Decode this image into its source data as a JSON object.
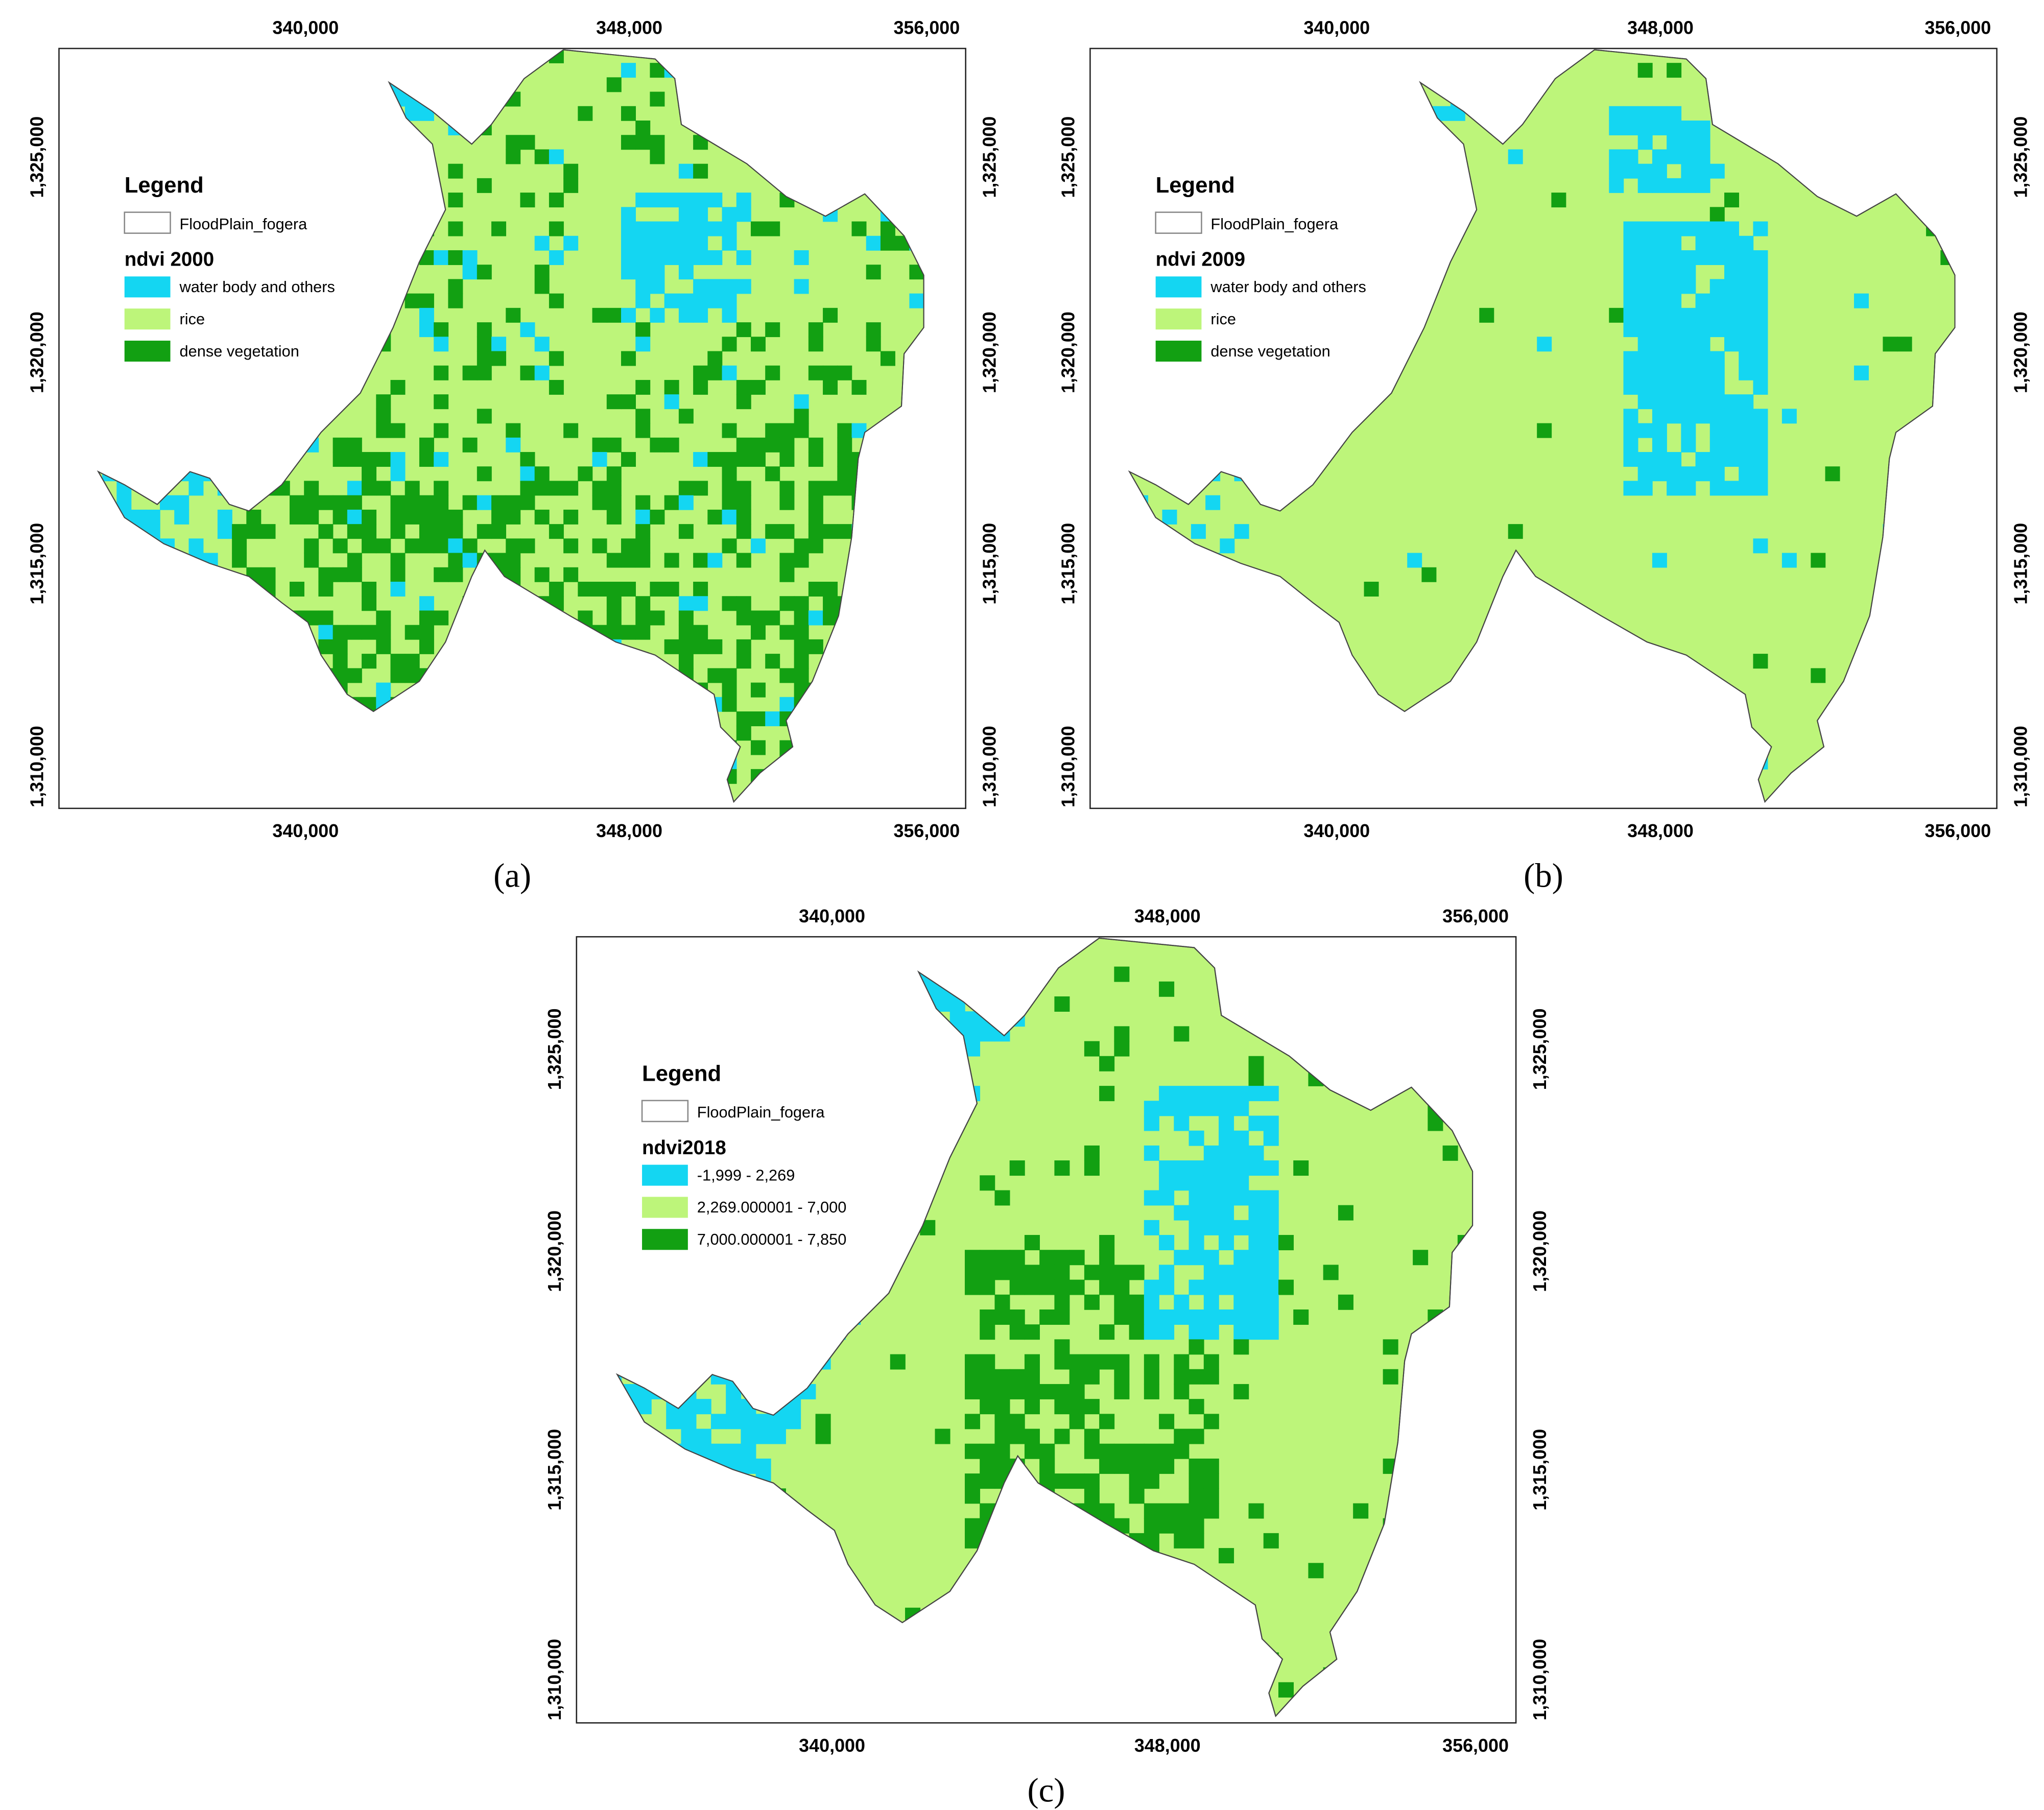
{
  "panels": [
    {
      "caption": "(a)",
      "legend": {
        "title": "Legend",
        "boundary": "FloodPlain_fogera",
        "layer": "ndvi 2000",
        "classes": [
          {
            "label": "water body and others",
            "color": "#14d6f2"
          },
          {
            "label": "rice",
            "color": "#bdf57a"
          },
          {
            "label": "dense vegetation",
            "color": "#12a012"
          }
        ]
      },
      "x_labels": [
        "340,000",
        "348,000",
        "356,000"
      ],
      "y_labels": [
        "1,325,000",
        "1,320,000",
        "1,315,000",
        "1,310,000"
      ]
    },
    {
      "caption": "(b)",
      "legend": {
        "title": "Legend",
        "boundary": "FloodPlain_fogera",
        "layer": "ndvi 2009",
        "classes": [
          {
            "label": "water body and others",
            "color": "#14d6f2"
          },
          {
            "label": "rice",
            "color": "#bdf57a"
          },
          {
            "label": "dense vegetation",
            "color": "#12a012"
          }
        ]
      },
      "x_labels": [
        "340,000",
        "348,000",
        "356,000"
      ],
      "y_labels": [
        "1,325,000",
        "1,320,000",
        "1,315,000",
        "1,310,000"
      ]
    },
    {
      "caption": "(c)",
      "legend": {
        "title": "Legend",
        "boundary": "FloodPlain_fogera",
        "layer": "ndvi2018",
        "classes": [
          {
            "label": "-1,999 - 2,269",
            "color": "#14d6f2"
          },
          {
            "label": "2,269.000001 - 7,000",
            "color": "#bdf57a"
          },
          {
            "label": "7,000.000001 - 7,850",
            "color": "#12a012"
          }
        ]
      },
      "x_labels": [
        "340,000",
        "348,000",
        "356,000"
      ],
      "y_labels": [
        "1,325,000",
        "1,320,000",
        "1,315,000",
        "1,310,000"
      ]
    }
  ]
}
